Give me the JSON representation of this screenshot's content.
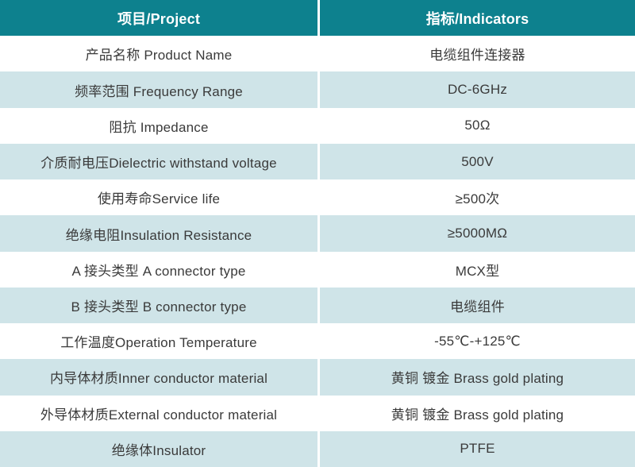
{
  "colors": {
    "header_bg": "#0d818e",
    "stripe_bg": "#cfe4e8",
    "row_bg": "#ffffff",
    "header_text": "#ffffff",
    "body_text": "#3a3a3a",
    "divider": "#ffffff"
  },
  "table": {
    "header": {
      "project": "项目/Project",
      "indicators": "指标/Indicators"
    },
    "rows": [
      {
        "project": "产品名称 Product Name",
        "indicator": "电缆组件连接器"
      },
      {
        "project": "频率范围 Frequency Range",
        "indicator": "DC-6GHz"
      },
      {
        "project": "阻抗 Impedance",
        "indicator": "50Ω"
      },
      {
        "project": "介质耐电压Dielectric withstand voltage",
        "indicator": "500V"
      },
      {
        "project": "使用寿命Service life",
        "indicator": "≥500次"
      },
      {
        "project": "绝缘电阻Insulation Resistance",
        "indicator": "≥5000MΩ"
      },
      {
        "project": "A 接头类型 A connector type",
        "indicator": "MCX型"
      },
      {
        "project": "B 接头类型 B connector type",
        "indicator": "电缆组件"
      },
      {
        "project": "工作温度Operation Temperature",
        "indicator": "-55℃-+125℃"
      },
      {
        "project": "内导体材质Inner conductor material",
        "indicator": "黄铜 镀金 Brass gold plating"
      },
      {
        "project": "外导体材质External conductor material",
        "indicator": "黄铜 镀金 Brass gold plating"
      },
      {
        "project": "绝缘体Insulator",
        "indicator": "PTFE"
      }
    ]
  }
}
